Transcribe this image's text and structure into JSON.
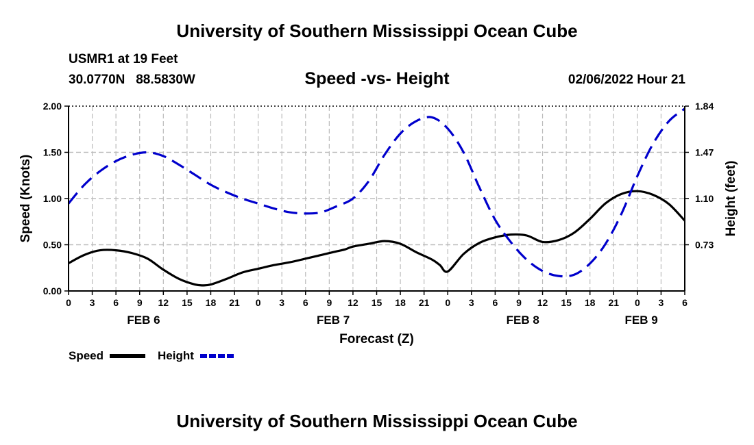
{
  "header": {
    "title": "University of Southern Mississippi Ocean Cube",
    "station": "USMR1 at 19 Feet",
    "coords": "30.0770N   88.5830W",
    "subtitle": "Speed -vs- Height",
    "datetime": "02/06/2022 Hour 21"
  },
  "footer": {
    "title": "University of Southern Mississippi Ocean Cube"
  },
  "colors": {
    "speed": "#000000",
    "height": "#0000cc",
    "grid": "#bbbbbb"
  },
  "chart_data": {
    "type": "line",
    "title": "Speed -vs- Height",
    "xlabel": "Forecast (Z)",
    "ylabel": "Speed (Knots)",
    "y2label": "Height (feet)",
    "x_unit": "hours since Feb 6 00Z",
    "xlim": [
      0,
      78
    ],
    "ylim": [
      0,
      2.0
    ],
    "y2lim": [
      0.36,
      1.84
    ],
    "x_ticks": [
      0,
      3,
      6,
      9,
      12,
      15,
      18,
      21,
      24,
      27,
      30,
      33,
      36,
      39,
      42,
      45,
      48,
      51,
      54,
      57,
      60,
      63,
      66,
      69,
      72,
      75,
      78
    ],
    "x_tick_labels": [
      "0",
      "3",
      "6",
      "9",
      "12",
      "15",
      "18",
      "21",
      "0",
      "3",
      "6",
      "9",
      "12",
      "15",
      "18",
      "21",
      "0",
      "3",
      "6",
      "9",
      "12",
      "15",
      "18",
      "21",
      "0",
      "3",
      "6"
    ],
    "y_ticks": [
      0,
      0.5,
      1.0,
      1.5,
      2.0
    ],
    "y_tick_labels": [
      "0.00",
      "0.50",
      "1.00",
      "1.50",
      "2.00"
    ],
    "y2_ticks": [
      0.73,
      1.1,
      1.47,
      1.84
    ],
    "y2_tick_labels": [
      "0.73",
      "1.10",
      "1.47",
      "1.84"
    ],
    "date_labels": [
      {
        "label": "FEB 6",
        "x": 9.5
      },
      {
        "label": "FEB 7",
        "x": 33.5
      },
      {
        "label": "FEB 8",
        "x": 57.5
      },
      {
        "label": "FEB 9",
        "x": 72.5
      }
    ],
    "grid": true,
    "series": [
      {
        "name": "Speed",
        "axis": "left",
        "style": "solid",
        "x": [
          0,
          2,
          4,
          6,
          8,
          10,
          12,
          14,
          16,
          17,
          18,
          20,
          22,
          24,
          26,
          28,
          30,
          32,
          34,
          35,
          36,
          38,
          40,
          42,
          44,
          46,
          47,
          48,
          50,
          52,
          54,
          56,
          58,
          60,
          62,
          64,
          66,
          68,
          70,
          72,
          74,
          76,
          78
        ],
        "values": [
          0.3,
          0.39,
          0.44,
          0.44,
          0.41,
          0.35,
          0.23,
          0.13,
          0.07,
          0.06,
          0.07,
          0.13,
          0.2,
          0.24,
          0.28,
          0.31,
          0.35,
          0.39,
          0.43,
          0.45,
          0.48,
          0.51,
          0.54,
          0.51,
          0.42,
          0.34,
          0.28,
          0.21,
          0.4,
          0.52,
          0.58,
          0.61,
          0.6,
          0.53,
          0.55,
          0.63,
          0.78,
          0.95,
          1.05,
          1.08,
          1.04,
          0.94,
          0.76
        ]
      },
      {
        "name": "Height",
        "axis": "right",
        "style": "dashed",
        "x": [
          0,
          2,
          4,
          6,
          8,
          10,
          12,
          14,
          16,
          18,
          20,
          22,
          24,
          26,
          28,
          30,
          32,
          34,
          36,
          38,
          40,
          42,
          44,
          46,
          48,
          50,
          52,
          54,
          56,
          58,
          60,
          62,
          64,
          66,
          68,
          70,
          72,
          74,
          76,
          78
        ],
        "values": [
          1.06,
          1.21,
          1.32,
          1.4,
          1.45,
          1.47,
          1.44,
          1.37,
          1.29,
          1.21,
          1.15,
          1.1,
          1.06,
          1.02,
          0.99,
          0.98,
          0.99,
          1.04,
          1.1,
          1.24,
          1.45,
          1.62,
          1.72,
          1.75,
          1.66,
          1.47,
          1.19,
          0.93,
          0.75,
          0.61,
          0.52,
          0.48,
          0.49,
          0.58,
          0.74,
          0.98,
          1.28,
          1.54,
          1.72,
          1.82
        ]
      }
    ],
    "legend": {
      "position": "bottom-left",
      "entries": [
        "Speed",
        "Height"
      ]
    }
  }
}
